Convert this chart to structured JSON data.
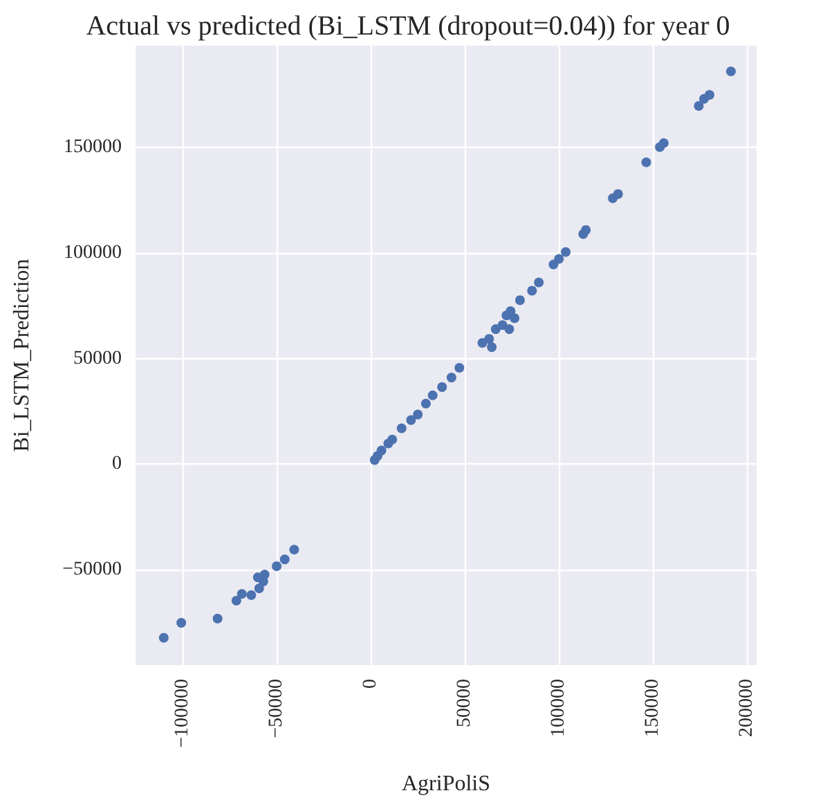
{
  "chart_data": {
    "type": "scatter",
    "title": "Actual vs predicted (Bi_LSTM (dropout=0.04)) for year 0",
    "xlabel": "AgriPoliS",
    "ylabel": "Bi_LSTM_Prediction",
    "x": [
      -110000,
      -100700,
      -81400,
      -71400,
      -68500,
      -63500,
      -60000,
      -57100,
      -50000,
      -45700,
      -40700,
      -59300,
      -56400,
      2100,
      3600,
      5700,
      9300,
      11400,
      16400,
      21400,
      25000,
      29300,
      32900,
      37900,
      42900,
      47100,
      59300,
      64300,
      62900,
      66400,
      70000,
      73600,
      72100,
      74300,
      76400,
      79300,
      85700,
      89300,
      97100,
      100000,
      103600,
      112900,
      114300,
      128600,
      131400,
      146400,
      153600,
      155700,
      174300,
      177100,
      180000,
      191400
    ],
    "values": [
      -82100,
      -75000,
      -73000,
      -64500,
      -61300,
      -61900,
      -53500,
      -55400,
      -48200,
      -45000,
      -40400,
      -58700,
      -52200,
      2000,
      3900,
      6500,
      9800,
      11700,
      17000,
      20900,
      23500,
      28700,
      32600,
      36500,
      41000,
      45600,
      57400,
      55400,
      59300,
      63900,
      65800,
      63900,
      70400,
      72400,
      69100,
      77600,
      82100,
      86000,
      94500,
      97100,
      100400,
      108900,
      110800,
      125800,
      127800,
      142800,
      150000,
      151900,
      169500,
      172800,
      174700,
      185800
    ],
    "color": "#4c72b0",
    "marker": "circle",
    "grid": true,
    "xlim": [
      -125000,
      205000
    ],
    "xticks": [
      {
        "value": -100000,
        "label": "−100000"
      },
      {
        "value": -50000,
        "label": "−50000"
      },
      0,
      50000,
      100000,
      150000,
      200000
    ],
    "ylim": [
      -95000,
      198000
    ],
    "yticks": [
      {
        "value": -50000,
        "label": "−50000"
      },
      0,
      50000,
      100000,
      150000
    ]
  }
}
